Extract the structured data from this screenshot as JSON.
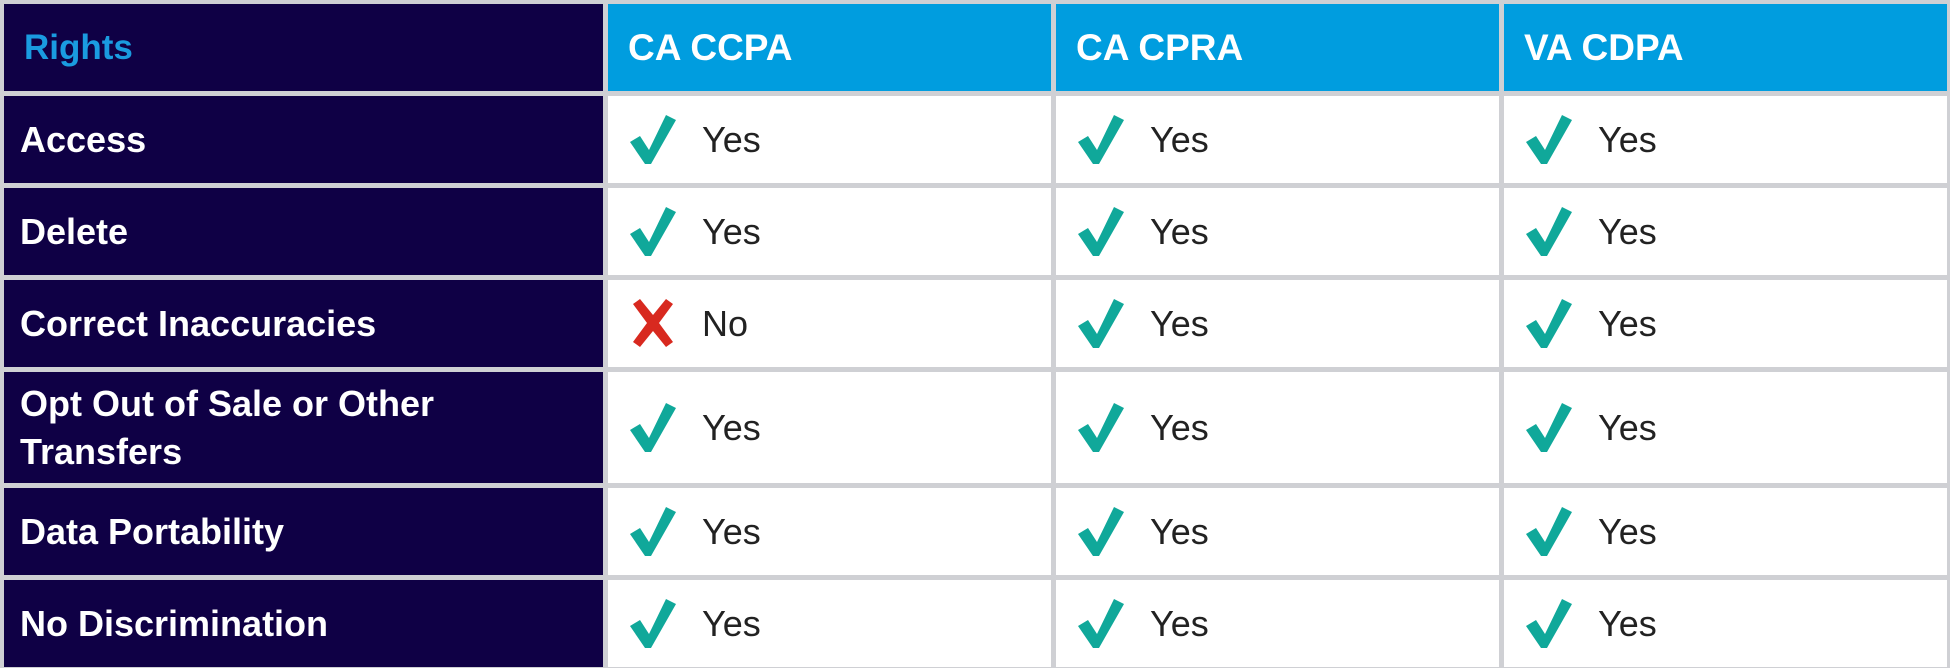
{
  "table": {
    "header": [
      "Rights",
      "CA CCPA",
      "CA CPRA",
      "VA CDPA"
    ],
    "rows": [
      [
        "Access",
        "Yes",
        "Yes",
        "Yes"
      ],
      [
        "Delete",
        "Yes",
        "Yes",
        "Yes"
      ],
      [
        "Correct Inaccuracies",
        "No",
        "Yes",
        "Yes"
      ],
      [
        "Opt Out of Sale or Other Transfers",
        "Yes",
        "Yes",
        "Yes"
      ],
      [
        "Data Portability",
        "Yes",
        "Yes",
        "Yes"
      ],
      [
        "No Discrimination",
        "Yes",
        "Yes",
        "Yes"
      ]
    ]
  }
}
